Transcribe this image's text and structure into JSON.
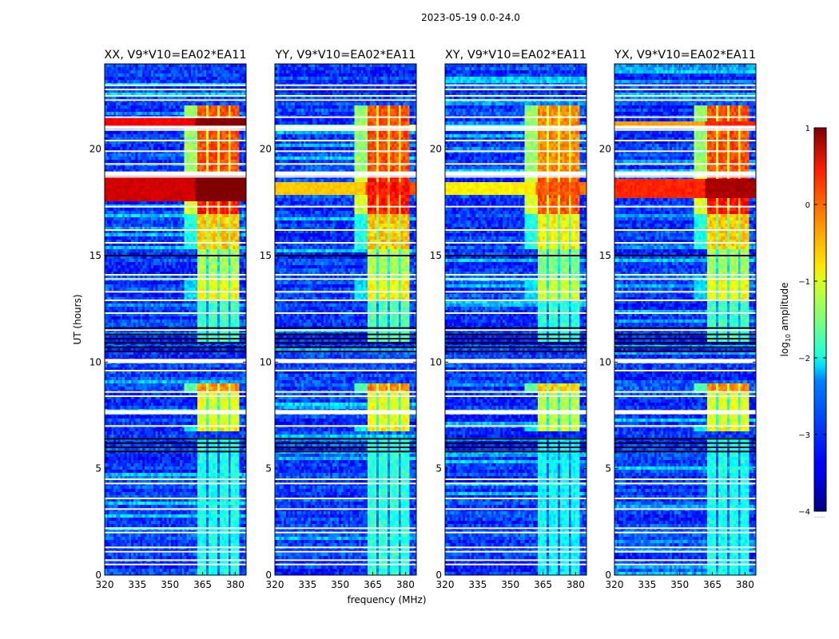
{
  "figure": {
    "suptitle": "2023-05-19 0.0-24.0",
    "xlabel": "frequency (MHz)",
    "ylabel": "UT (hours)",
    "colorbar_label_prefix": "log",
    "colorbar_label_sub": "10",
    "colorbar_label_suffix": " amplitude"
  },
  "chart_data": {
    "type": "heatmap",
    "title": "2023-05-19 0.0-24.0",
    "xlabel": "frequency (MHz)",
    "ylabel": "UT (hours)",
    "xlim": [
      320,
      385
    ],
    "ylim": [
      0,
      24
    ],
    "xticks": [
      320,
      335,
      350,
      365,
      380
    ],
    "xtick_labels": [
      "320",
      "335",
      "350",
      "365",
      "380"
    ],
    "yticks": [
      0,
      5,
      10,
      15,
      20
    ],
    "ytick_labels": [
      "0",
      "5",
      "10",
      "15",
      "20"
    ],
    "colormap": "jet",
    "color_range": [
      -4,
      1
    ],
    "colorbar": {
      "label": "log10 amplitude",
      "ticks": [
        1,
        0,
        -1,
        -2,
        -3,
        -4
      ],
      "tick_labels": [
        "1",
        "0",
        "−1",
        "−2",
        "−3",
        "−4"
      ],
      "placement": "right"
    },
    "panels": [
      {
        "title": "XX, V9*V10=EA02*EA11",
        "pol": "XX",
        "strong_rows": [
          [
            17.6,
            18.7,
            0.6
          ],
          [
            21.0,
            21.4,
            0.4
          ]
        ],
        "rfi_scale": 1.0
      },
      {
        "title": "YY, V9*V10=EA02*EA11",
        "pol": "YY",
        "strong_rows": [
          [
            17.8,
            18.4,
            -0.6
          ],
          [
            20.9,
            21.2,
            -1.5
          ]
        ],
        "rfi_scale": 0.95
      },
      {
        "title": "XY, V9*V10=EA02*EA11",
        "pol": "XY",
        "strong_rows": [
          [
            17.8,
            18.4,
            -0.8
          ],
          [
            20.9,
            21.2,
            -2.2
          ]
        ],
        "rfi_scale": 0.9
      },
      {
        "title": "YX, V9*V10=EA02*EA11",
        "pol": "YX",
        "strong_rows": [
          [
            17.7,
            18.6,
            0.2
          ],
          [
            21.0,
            21.3,
            -0.4
          ]
        ],
        "rfi_scale": 1.0
      }
    ],
    "rfi_band_mhz": [
      362.5,
      381.5
    ],
    "rfi_subbands_mhz": [
      [
        362.5,
        366.5
      ],
      [
        367.5,
        371.5
      ],
      [
        372.5,
        376.5
      ],
      [
        377.5,
        381.5
      ]
    ],
    "rfi_time_blocks": [
      {
        "ut": [
          18.9,
          22.0
        ],
        "level": 0.0
      },
      {
        "ut": [
          17.0,
          18.9
        ],
        "level": 0.3
      },
      {
        "ut": [
          15.3,
          17.0
        ],
        "level": -0.6
      },
      {
        "ut": [
          14.0,
          15.3
        ],
        "level": -1.3
      },
      {
        "ut": [
          12.9,
          13.9
        ],
        "level": -0.9
      },
      {
        "ut": [
          11.0,
          12.9
        ],
        "level": -1.8
      },
      {
        "ut": [
          8.5,
          9.0
        ],
        "level": -0.3
      },
      {
        "ut": [
          7.0,
          8.5
        ],
        "level": -1.0
      },
      {
        "ut": [
          6.8,
          7.0
        ],
        "level": -0.8
      },
      {
        "ut": [
          0.0,
          6.5
        ],
        "level": -2.0
      }
    ],
    "flagged_rows_ut": [
      0.5,
      0.7,
      1.1,
      1.3,
      2.0,
      2.2,
      3.1,
      3.6,
      4.3,
      4.5,
      7.0,
      7.6,
      7.7,
      8.4,
      8.6,
      9.6,
      10.0,
      10.1,
      11.5,
      12.3,
      12.9,
      13.3,
      13.9,
      14.1,
      15.6,
      16.2,
      17.3,
      18.7,
      18.8,
      19.3,
      19.9,
      20.4,
      20.9,
      21.0,
      21.5,
      22.3,
      22.5,
      22.8,
      23.0
    ],
    "dropout_rows_ut": [
      5.8,
      6.0,
      6.2,
      6.4,
      10.5,
      10.7,
      10.9,
      11.1,
      11.3,
      11.6,
      15.0,
      18.9
    ]
  }
}
